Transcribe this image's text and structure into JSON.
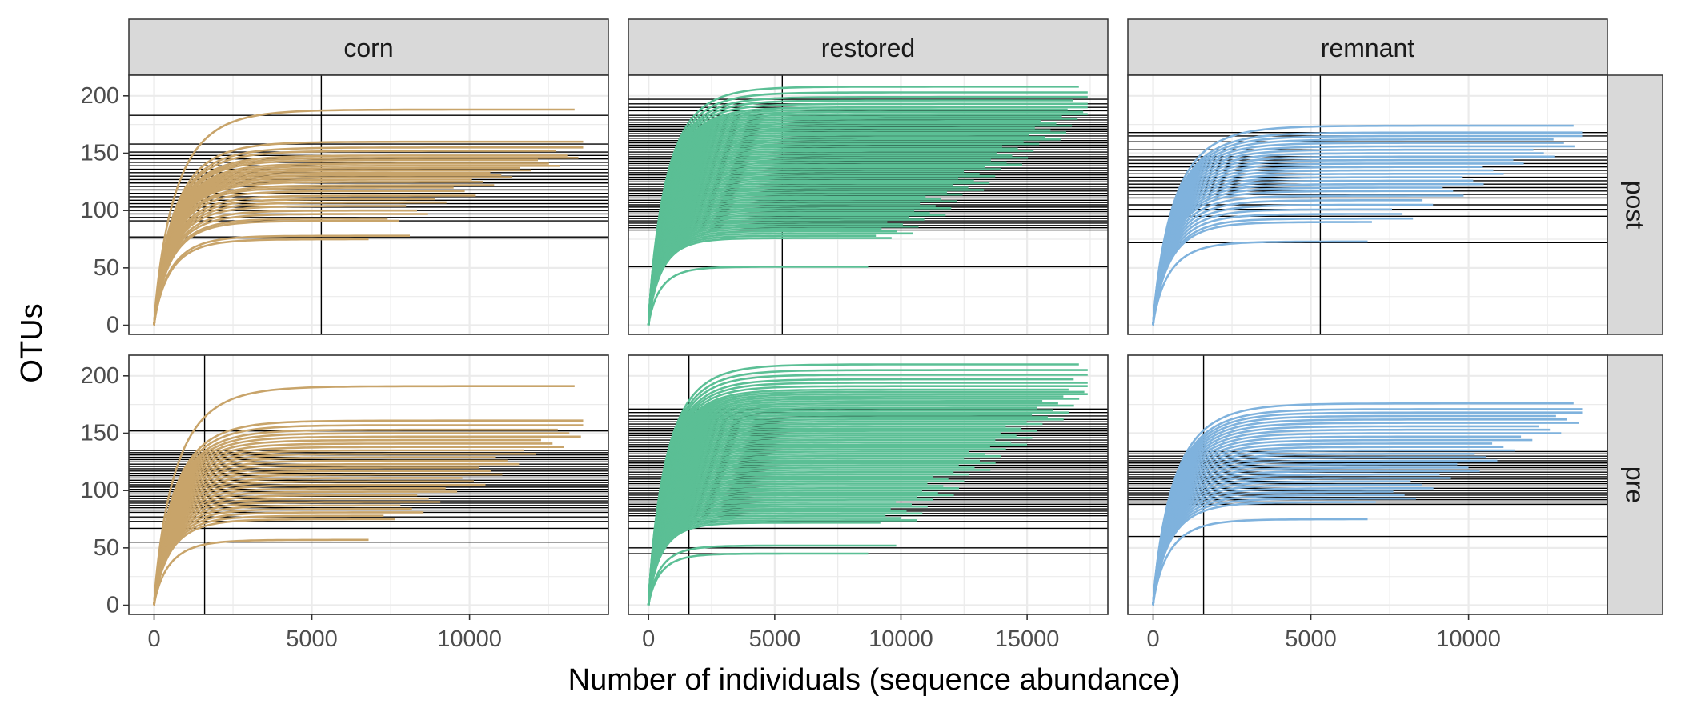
{
  "chart_data": {
    "type": "line",
    "xlabel": "Number of individuals (sequence abundance)",
    "ylabel": "OTUs",
    "column_facets": [
      "corn",
      "restored",
      "remnant"
    ],
    "row_facets": [
      "post",
      "pre"
    ],
    "y_ticks": [
      0,
      50,
      100,
      150,
      200
    ],
    "ylim": [
      -8,
      218
    ],
    "grid": true,
    "panels": [
      {
        "col": "corn",
        "row": "post",
        "xlim": [
          -800,
          14400
        ],
        "x_ticks": [
          0,
          5000,
          10000
        ],
        "color": "#C8A46A",
        "vline": 5300,
        "asymptotes": [
          188,
          160,
          155,
          152,
          148,
          146,
          144,
          141,
          139,
          137,
          135,
          133,
          131,
          129,
          127,
          125,
          122,
          120,
          117,
          113,
          110,
          107,
          104,
          100,
          97,
          93,
          91,
          78,
          75
        ],
        "hlines": [
          183,
          158,
          151,
          148,
          145,
          142,
          139,
          136,
          133,
          130,
          127,
          124,
          121,
          118,
          115,
          112,
          109,
          106,
          103,
          100,
          97,
          94,
          91,
          77,
          76
        ]
      },
      {
        "col": "restored",
        "row": "post",
        "xlim": [
          -800,
          18200
        ],
        "x_ticks": [
          0,
          5000,
          10000,
          15000
        ],
        "color": "#5BBF95",
        "vline": 5300,
        "asymptotes": [
          208,
          203,
          199,
          196,
          193,
          190,
          188,
          186,
          184,
          182,
          180,
          178,
          176,
          174,
          172,
          170,
          168,
          166,
          164,
          162,
          160,
          158,
          156,
          154,
          152,
          150,
          148,
          146,
          144,
          142,
          140,
          138,
          136,
          134,
          132,
          130,
          128,
          126,
          124,
          122,
          120,
          118,
          116,
          114,
          112,
          110,
          108,
          106,
          104,
          102,
          100,
          98,
          96,
          94,
          92,
          90,
          88,
          86,
          84,
          82,
          80,
          78,
          76,
          51
        ],
        "hlines": [
          197,
          193,
          190,
          187,
          183,
          181,
          179,
          177,
          175,
          173,
          171,
          169,
          167,
          165,
          163,
          161,
          159,
          157,
          155,
          153,
          151,
          149,
          147,
          145,
          143,
          141,
          139,
          137,
          135,
          133,
          131,
          129,
          127,
          125,
          123,
          121,
          119,
          117,
          115,
          113,
          111,
          109,
          107,
          105,
          103,
          101,
          99,
          97,
          95,
          93,
          91,
          89,
          87,
          85,
          83,
          51
        ]
      },
      {
        "col": "remnant",
        "row": "post",
        "xlim": [
          -800,
          14400
        ],
        "x_ticks": [
          0,
          5000,
          10000
        ],
        "color": "#7FB2DD",
        "vline": 5300,
        "asymptotes": [
          174,
          168,
          165,
          162,
          159,
          156,
          153,
          150,
          147,
          144,
          141,
          138,
          135,
          132,
          129,
          126,
          123,
          120,
          117,
          113,
          109,
          105,
          101,
          97,
          93,
          90,
          73
        ],
        "hlines": [
          168,
          165,
          160,
          153,
          147,
          144,
          141,
          138,
          135,
          132,
          129,
          126,
          123,
          120,
          117,
          114,
          111,
          105,
          101,
          95,
          72
        ]
      },
      {
        "col": "corn",
        "row": "pre",
        "xlim": [
          -800,
          14400
        ],
        "x_ticks": [
          0,
          5000,
          10000
        ],
        "color": "#C8A46A",
        "vline": 1600,
        "asymptotes": [
          191,
          161,
          157,
          153,
          150,
          147,
          144,
          141,
          138,
          135,
          132,
          129,
          126,
          123,
          120,
          117,
          114,
          111,
          108,
          105,
          102,
          99,
          96,
          93,
          90,
          87,
          84,
          81,
          78,
          75,
          57
        ],
        "hlines": [
          152,
          135,
          133,
          131,
          129,
          127,
          125,
          123,
          121,
          119,
          117,
          115,
          113,
          111,
          109,
          107,
          105,
          103,
          101,
          99,
          97,
          95,
          93,
          91,
          89,
          87,
          85,
          83,
          81,
          77,
          73,
          67,
          55
        ]
      },
      {
        "col": "restored",
        "row": "pre",
        "xlim": [
          -800,
          18200
        ],
        "x_ticks": [
          0,
          5000,
          10000,
          15000
        ],
        "color": "#5BBF95",
        "vline": 1600,
        "asymptotes": [
          210,
          205,
          201,
          197,
          194,
          191,
          188,
          186,
          184,
          182,
          180,
          178,
          176,
          174,
          172,
          170,
          168,
          166,
          164,
          162,
          160,
          158,
          156,
          154,
          152,
          150,
          148,
          146,
          144,
          142,
          140,
          138,
          136,
          134,
          132,
          130,
          128,
          126,
          124,
          122,
          120,
          118,
          116,
          114,
          112,
          110,
          108,
          106,
          104,
          102,
          100,
          98,
          96,
          94,
          92,
          90,
          88,
          86,
          84,
          82,
          80,
          78,
          76,
          74,
          72,
          52,
          45
        ],
        "hlines": [
          171,
          168,
          165,
          162,
          160,
          158,
          156,
          154,
          152,
          150,
          148,
          146,
          144,
          142,
          140,
          138,
          136,
          134,
          132,
          130,
          128,
          126,
          124,
          122,
          120,
          118,
          116,
          114,
          112,
          110,
          108,
          106,
          104,
          102,
          100,
          98,
          96,
          94,
          92,
          90,
          88,
          86,
          84,
          82,
          80,
          78,
          73,
          67,
          50,
          45
        ]
      },
      {
        "col": "remnant",
        "row": "pre",
        "xlim": [
          -800,
          14400
        ],
        "x_ticks": [
          0,
          5000,
          10000
        ],
        "color": "#7FB2DD",
        "vline": 1600,
        "asymptotes": [
          176,
          171,
          168,
          165,
          162,
          159,
          156,
          153,
          150,
          147,
          144,
          141,
          138,
          135,
          132,
          129,
          126,
          123,
          120,
          117,
          114,
          111,
          108,
          105,
          102,
          99,
          96,
          93,
          90,
          75
        ],
        "hlines": [
          134,
          132,
          130,
          128,
          126,
          124,
          122,
          120,
          118,
          116,
          114,
          112,
          110,
          108,
          106,
          104,
          102,
          100,
          98,
          96,
          94,
          92,
          90,
          88,
          60
        ]
      }
    ]
  }
}
